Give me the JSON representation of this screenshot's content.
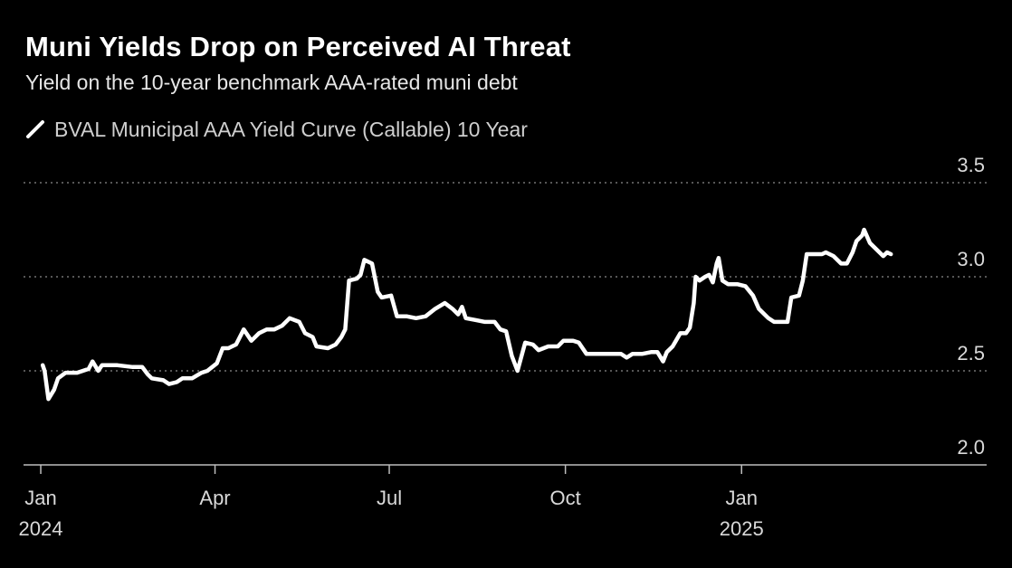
{
  "title": "Muni Yields Drop on Perceived AI Threat",
  "subtitle": "Yield on the 10-year benchmark AAA-rated muni debt",
  "chart_data": {
    "type": "line",
    "series": [
      {
        "name": "BVAL Municipal AAA Yield Curve (Callable) 10 Year",
        "color": "#ffffff",
        "points": [
          [
            "2024-01-02",
            2.53
          ],
          [
            "2024-01-03",
            2.5
          ],
          [
            "2024-01-05",
            2.35
          ],
          [
            "2024-01-08",
            2.4
          ],
          [
            "2024-01-10",
            2.46
          ],
          [
            "2024-01-14",
            2.49
          ],
          [
            "2024-01-20",
            2.49
          ],
          [
            "2024-01-26",
            2.51
          ],
          [
            "2024-01-28",
            2.55
          ],
          [
            "2024-01-31",
            2.5
          ],
          [
            "2024-02-02",
            2.53
          ],
          [
            "2024-02-10",
            2.53
          ],
          [
            "2024-02-18",
            2.52
          ],
          [
            "2024-02-23",
            2.52
          ],
          [
            "2024-02-26",
            2.48
          ],
          [
            "2024-02-28",
            2.46
          ],
          [
            "2024-03-05",
            2.45
          ],
          [
            "2024-03-08",
            2.43
          ],
          [
            "2024-03-12",
            2.44
          ],
          [
            "2024-03-15",
            2.46
          ],
          [
            "2024-03-20",
            2.46
          ],
          [
            "2024-03-25",
            2.49
          ],
          [
            "2024-03-28",
            2.5
          ],
          [
            "2024-04-02",
            2.54
          ],
          [
            "2024-04-05",
            2.62
          ],
          [
            "2024-04-08",
            2.62
          ],
          [
            "2024-04-12",
            2.64
          ],
          [
            "2024-04-16",
            2.72
          ],
          [
            "2024-04-20",
            2.66
          ],
          [
            "2024-04-24",
            2.7
          ],
          [
            "2024-04-28",
            2.72
          ],
          [
            "2024-05-02",
            2.72
          ],
          [
            "2024-05-06",
            2.74
          ],
          [
            "2024-05-10",
            2.78
          ],
          [
            "2024-05-15",
            2.76
          ],
          [
            "2024-05-18",
            2.7
          ],
          [
            "2024-05-22",
            2.68
          ],
          [
            "2024-05-24",
            2.63
          ],
          [
            "2024-05-30",
            2.62
          ],
          [
            "2024-06-03",
            2.64
          ],
          [
            "2024-06-06",
            2.68
          ],
          [
            "2024-06-08",
            2.72
          ],
          [
            "2024-06-10",
            2.98
          ],
          [
            "2024-06-14",
            2.99
          ],
          [
            "2024-06-16",
            3.01
          ],
          [
            "2024-06-18",
            3.09
          ],
          [
            "2024-06-22",
            3.07
          ],
          [
            "2024-06-25",
            2.92
          ],
          [
            "2024-06-27",
            2.89
          ],
          [
            "2024-07-02",
            2.9
          ],
          [
            "2024-07-05",
            2.79
          ],
          [
            "2024-07-10",
            2.79
          ],
          [
            "2024-07-15",
            2.78
          ],
          [
            "2024-07-20",
            2.79
          ],
          [
            "2024-07-25",
            2.83
          ],
          [
            "2024-07-30",
            2.86
          ],
          [
            "2024-08-03",
            2.83
          ],
          [
            "2024-08-06",
            2.8
          ],
          [
            "2024-08-08",
            2.84
          ],
          [
            "2024-08-10",
            2.78
          ],
          [
            "2024-08-15",
            2.77
          ],
          [
            "2024-08-20",
            2.76
          ],
          [
            "2024-08-25",
            2.76
          ],
          [
            "2024-08-28",
            2.72
          ],
          [
            "2024-08-31",
            2.71
          ],
          [
            "2024-09-03",
            2.58
          ],
          [
            "2024-09-06",
            2.5
          ],
          [
            "2024-09-10",
            2.65
          ],
          [
            "2024-09-14",
            2.64
          ],
          [
            "2024-09-17",
            2.61
          ],
          [
            "2024-09-22",
            2.63
          ],
          [
            "2024-09-27",
            2.63
          ],
          [
            "2024-09-30",
            2.66
          ],
          [
            "2024-10-05",
            2.66
          ],
          [
            "2024-10-08",
            2.65
          ],
          [
            "2024-10-12",
            2.59
          ],
          [
            "2024-10-18",
            2.59
          ],
          [
            "2024-10-25",
            2.59
          ],
          [
            "2024-10-30",
            2.59
          ],
          [
            "2024-11-02",
            2.57
          ],
          [
            "2024-11-05",
            2.59
          ],
          [
            "2024-11-10",
            2.59
          ],
          [
            "2024-11-15",
            2.6
          ],
          [
            "2024-11-18",
            2.6
          ],
          [
            "2024-11-21",
            2.55
          ],
          [
            "2024-11-23",
            2.6
          ],
          [
            "2024-11-26",
            2.63
          ],
          [
            "2024-11-30",
            2.7
          ],
          [
            "2024-12-03",
            2.7
          ],
          [
            "2024-12-05",
            2.73
          ],
          [
            "2024-12-07",
            2.86
          ],
          [
            "2024-12-08",
            3.0
          ],
          [
            "2024-12-10",
            2.98
          ],
          [
            "2024-12-13",
            3.0
          ],
          [
            "2024-12-15",
            3.01
          ],
          [
            "2024-12-17",
            2.97
          ],
          [
            "2024-12-19",
            3.07
          ],
          [
            "2024-12-20",
            3.1
          ],
          [
            "2024-12-22",
            2.98
          ],
          [
            "2024-12-25",
            2.96
          ],
          [
            "2024-12-30",
            2.96
          ],
          [
            "2025-01-03",
            2.95
          ],
          [
            "2025-01-07",
            2.9
          ],
          [
            "2025-01-10",
            2.83
          ],
          [
            "2025-01-15",
            2.78
          ],
          [
            "2025-01-18",
            2.76
          ],
          [
            "2025-01-25",
            2.76
          ],
          [
            "2025-01-27",
            2.89
          ],
          [
            "2025-01-31",
            2.9
          ],
          [
            "2025-02-02",
            2.98
          ],
          [
            "2025-02-04",
            3.12
          ],
          [
            "2025-02-08",
            3.12
          ],
          [
            "2025-02-12",
            3.12
          ],
          [
            "2025-02-14",
            3.13
          ],
          [
            "2025-02-18",
            3.11
          ],
          [
            "2025-02-22",
            3.07
          ],
          [
            "2025-02-25",
            3.07
          ],
          [
            "2025-02-28",
            3.13
          ],
          [
            "2025-03-02",
            3.19
          ],
          [
            "2025-03-05",
            3.22
          ],
          [
            "2025-03-06",
            3.25
          ],
          [
            "2025-03-09",
            3.18
          ],
          [
            "2025-03-13",
            3.14
          ],
          [
            "2025-03-16",
            3.11
          ],
          [
            "2025-03-18",
            3.13
          ],
          [
            "2025-03-20",
            3.12
          ]
        ]
      }
    ],
    "y_ticks": [
      2.0,
      2.5,
      3.0,
      3.5
    ],
    "y_tick_labels": [
      "2.0",
      "2.5",
      "3.0",
      "3.5"
    ],
    "ylim": [
      2.0,
      3.5
    ],
    "x_ticks": [
      {
        "date": "2024-01-01",
        "label": "Jan",
        "sublabel": "2024"
      },
      {
        "date": "2024-04-01",
        "label": "Apr",
        "sublabel": ""
      },
      {
        "date": "2024-07-01",
        "label": "Jul",
        "sublabel": ""
      },
      {
        "date": "2024-10-01",
        "label": "Oct",
        "sublabel": ""
      },
      {
        "date": "2025-01-01",
        "label": "Jan",
        "sublabel": "2025"
      }
    ],
    "xlim": [
      "2023-12-23",
      "2025-05-09"
    ],
    "grid": "horizontal-dotted",
    "y_axis_side": "right",
    "legend_position": "top-left"
  }
}
